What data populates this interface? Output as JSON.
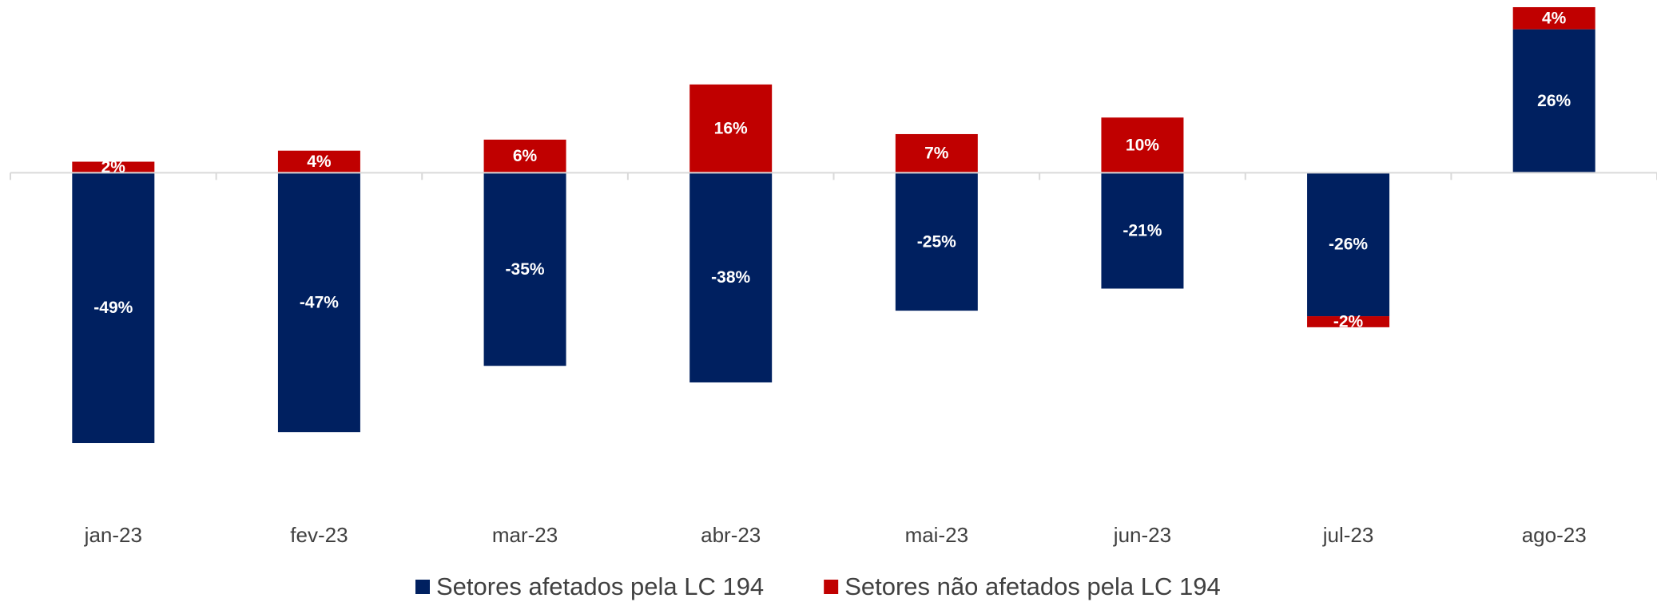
{
  "chart_data": {
    "type": "stacked_bar",
    "categories": [
      "jan-23",
      "fev-23",
      "mar-23",
      "abr-23",
      "mai-23",
      "jun-23",
      "jul-23",
      "ago-23"
    ],
    "series": [
      {
        "name": "Setores afetados pela LC 194",
        "color": "#002060",
        "values": [
          -49,
          -47,
          -35,
          -38,
          -25,
          -21,
          -26,
          26
        ],
        "value_labels": [
          "-49%",
          "-47%",
          "-35%",
          "-38%",
          "-25%",
          "-21%",
          "-26%",
          "26%"
        ]
      },
      {
        "name": "Setores não afetados pela LC 194",
        "color": "#C00000",
        "values": [
          2,
          4,
          6,
          16,
          7,
          10,
          -2,
          4
        ],
        "value_labels": [
          "2%",
          "4%",
          "6%",
          "16%",
          "7%",
          "10%",
          "-2%",
          "4%"
        ]
      }
    ],
    "legend": "bottom"
  }
}
